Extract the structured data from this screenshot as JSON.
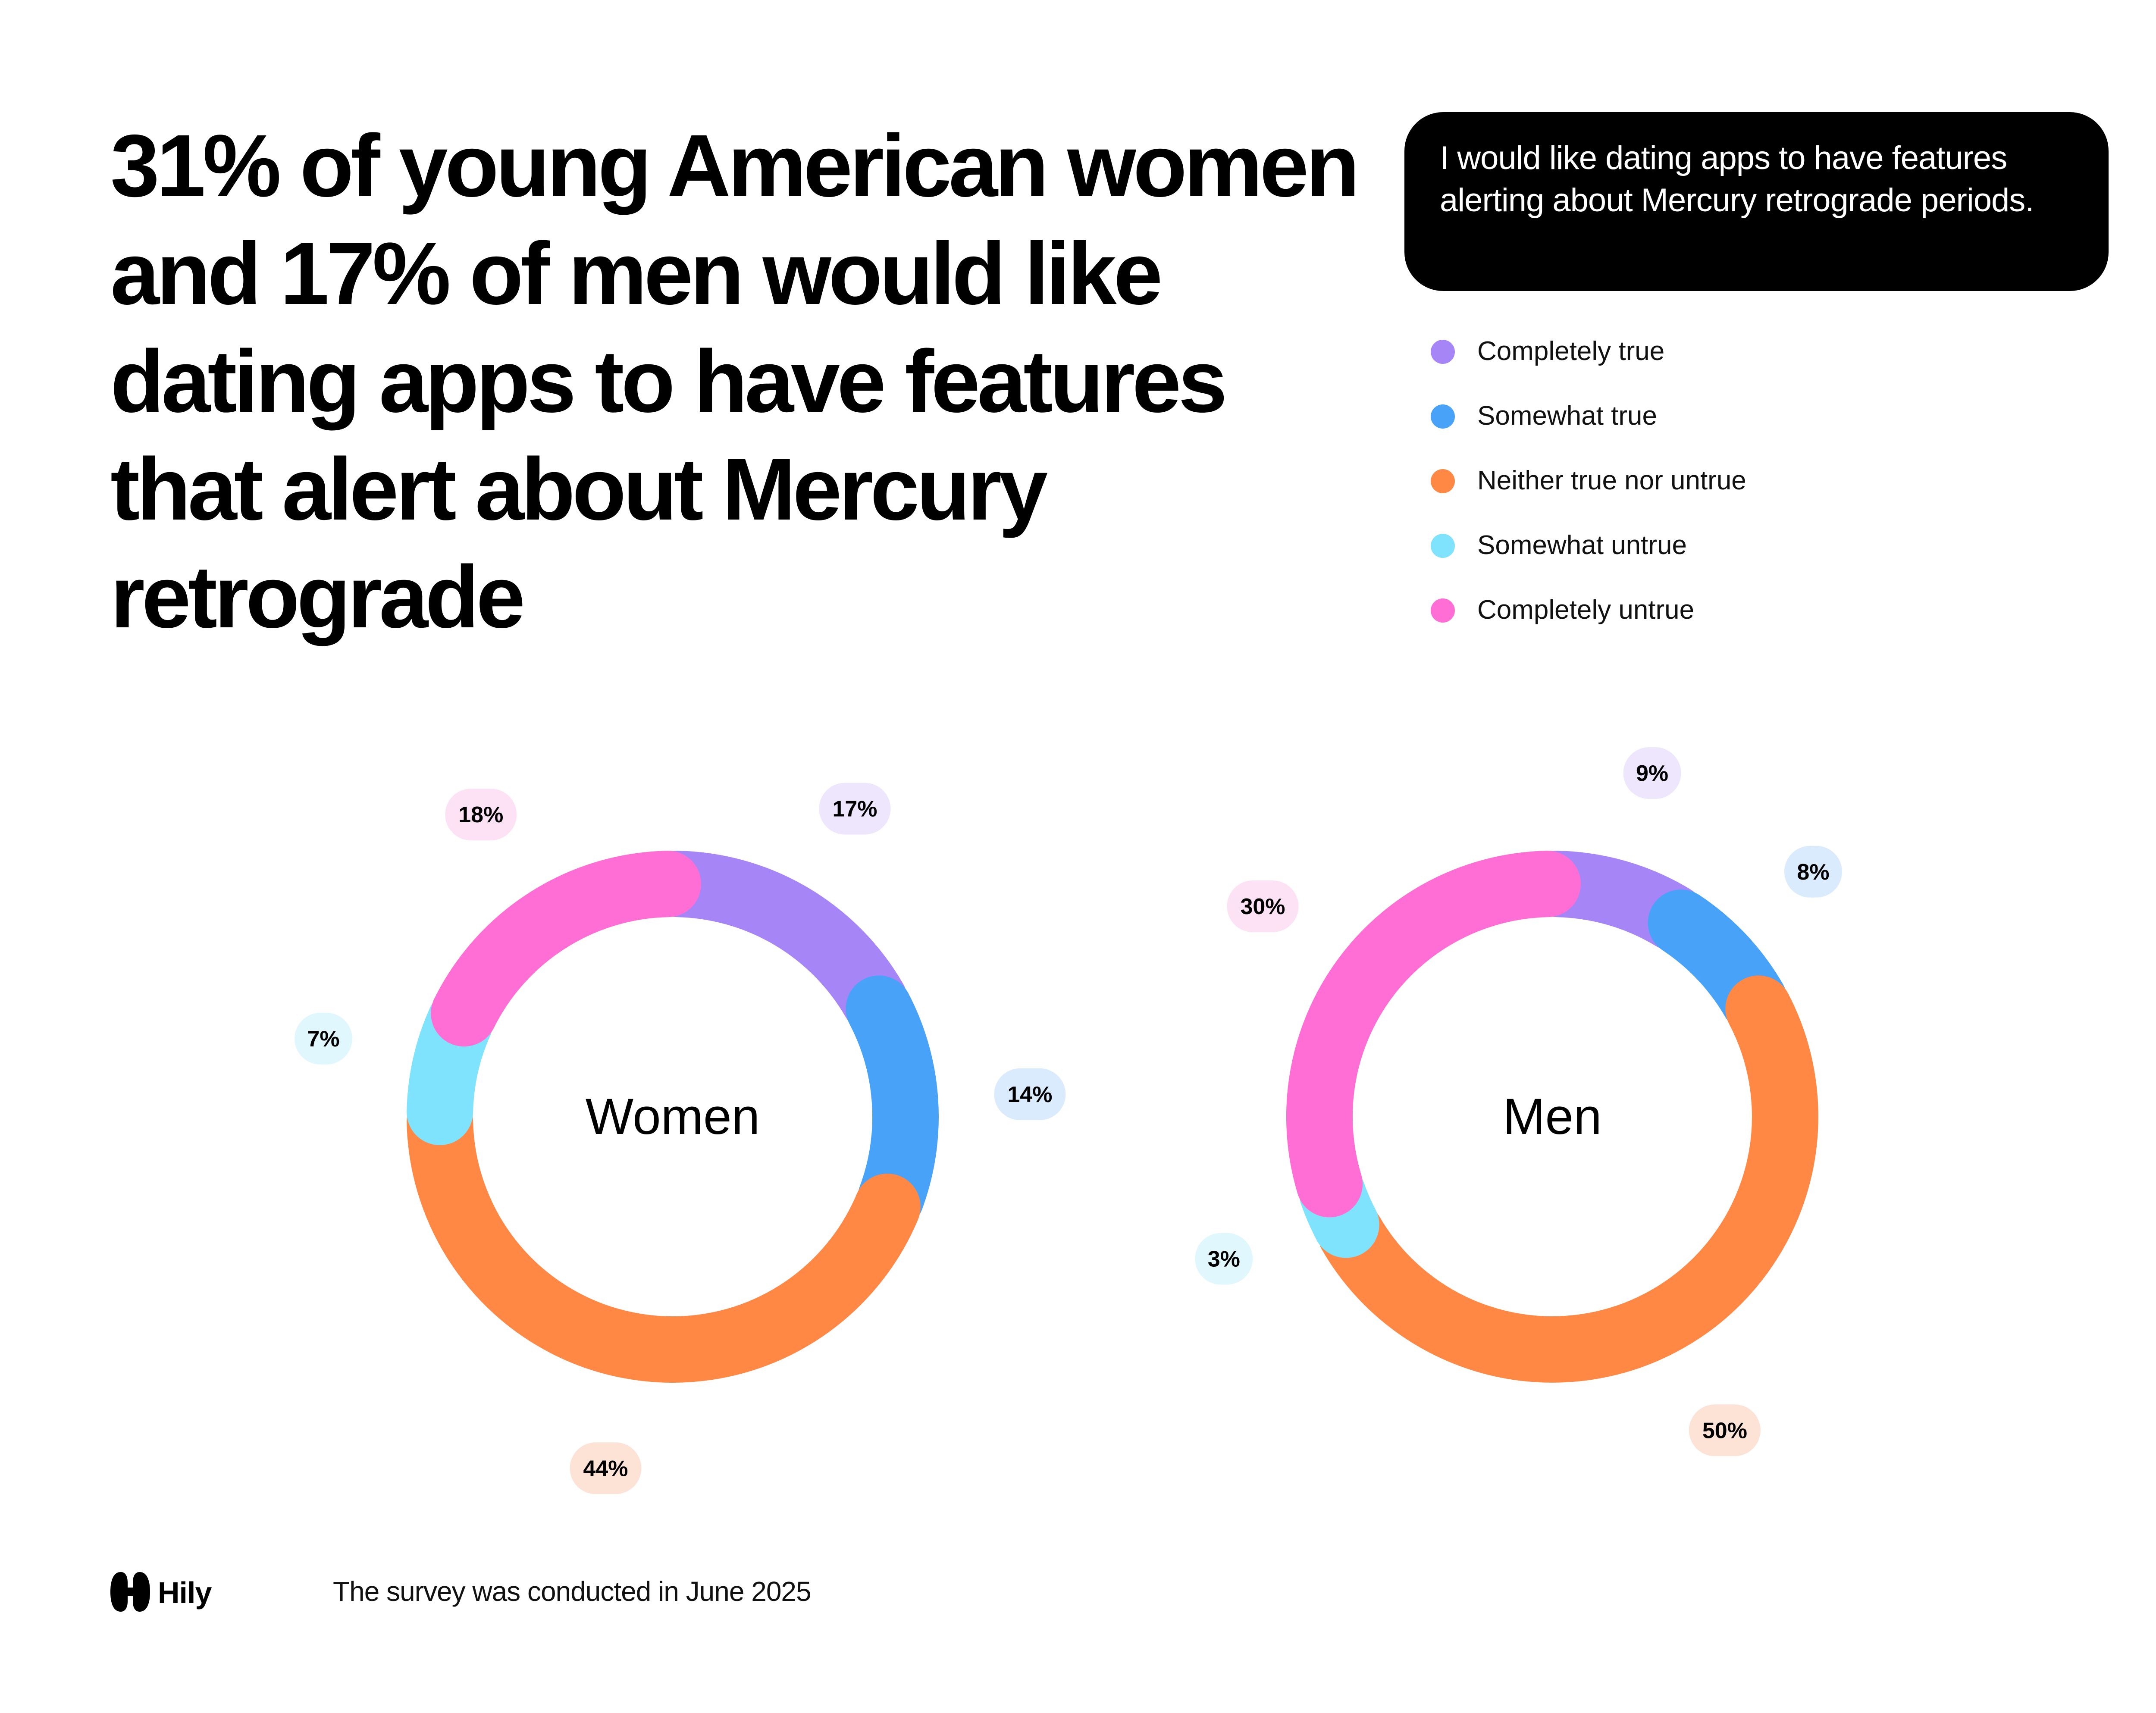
{
  "headline": "31% of young American women and 17% of men would like dating apps to have features that alert about Mercury retrograde",
  "question": "I would like dating apps to have features alerting about Mercury retrograde periods.",
  "legend": [
    {
      "label": "Completely true",
      "color": "#A685F7"
    },
    {
      "label": "Somewhat true",
      "color": "#47A2F8"
    },
    {
      "label": "Neither true nor untrue",
      "color": "#FF8845"
    },
    {
      "label": "Somewhat untrue",
      "color": "#7FE3FD"
    },
    {
      "label": "Completely untrue",
      "color": "#FF6ED5"
    }
  ],
  "chart_data": [
    {
      "type": "pie",
      "center_label": "Women",
      "categories": [
        "Completely true",
        "Somewhat true",
        "Neither true nor untrue",
        "Somewhat untrue",
        "Completely untrue"
      ],
      "values": [
        17,
        14,
        44,
        7,
        18
      ],
      "value_labels": [
        "17%",
        "14%",
        "44%",
        "7%",
        "18%"
      ]
    },
    {
      "type": "pie",
      "center_label": "Men",
      "categories": [
        "Completely true",
        "Somewhat true",
        "Neither true nor untrue",
        "Somewhat untrue",
        "Completely untrue"
      ],
      "values": [
        9,
        8,
        50,
        3,
        30
      ],
      "value_labels": [
        "9%",
        "8%",
        "50%",
        "3%",
        "30%"
      ]
    }
  ],
  "pill_colors": [
    "#EDE6FD",
    "#DAEBFD",
    "#FCE3D6",
    "#E1F7FE",
    "#FDE1F5"
  ],
  "brand": {
    "name": "Hily"
  },
  "footnote": "The survey was conducted in June 2025"
}
